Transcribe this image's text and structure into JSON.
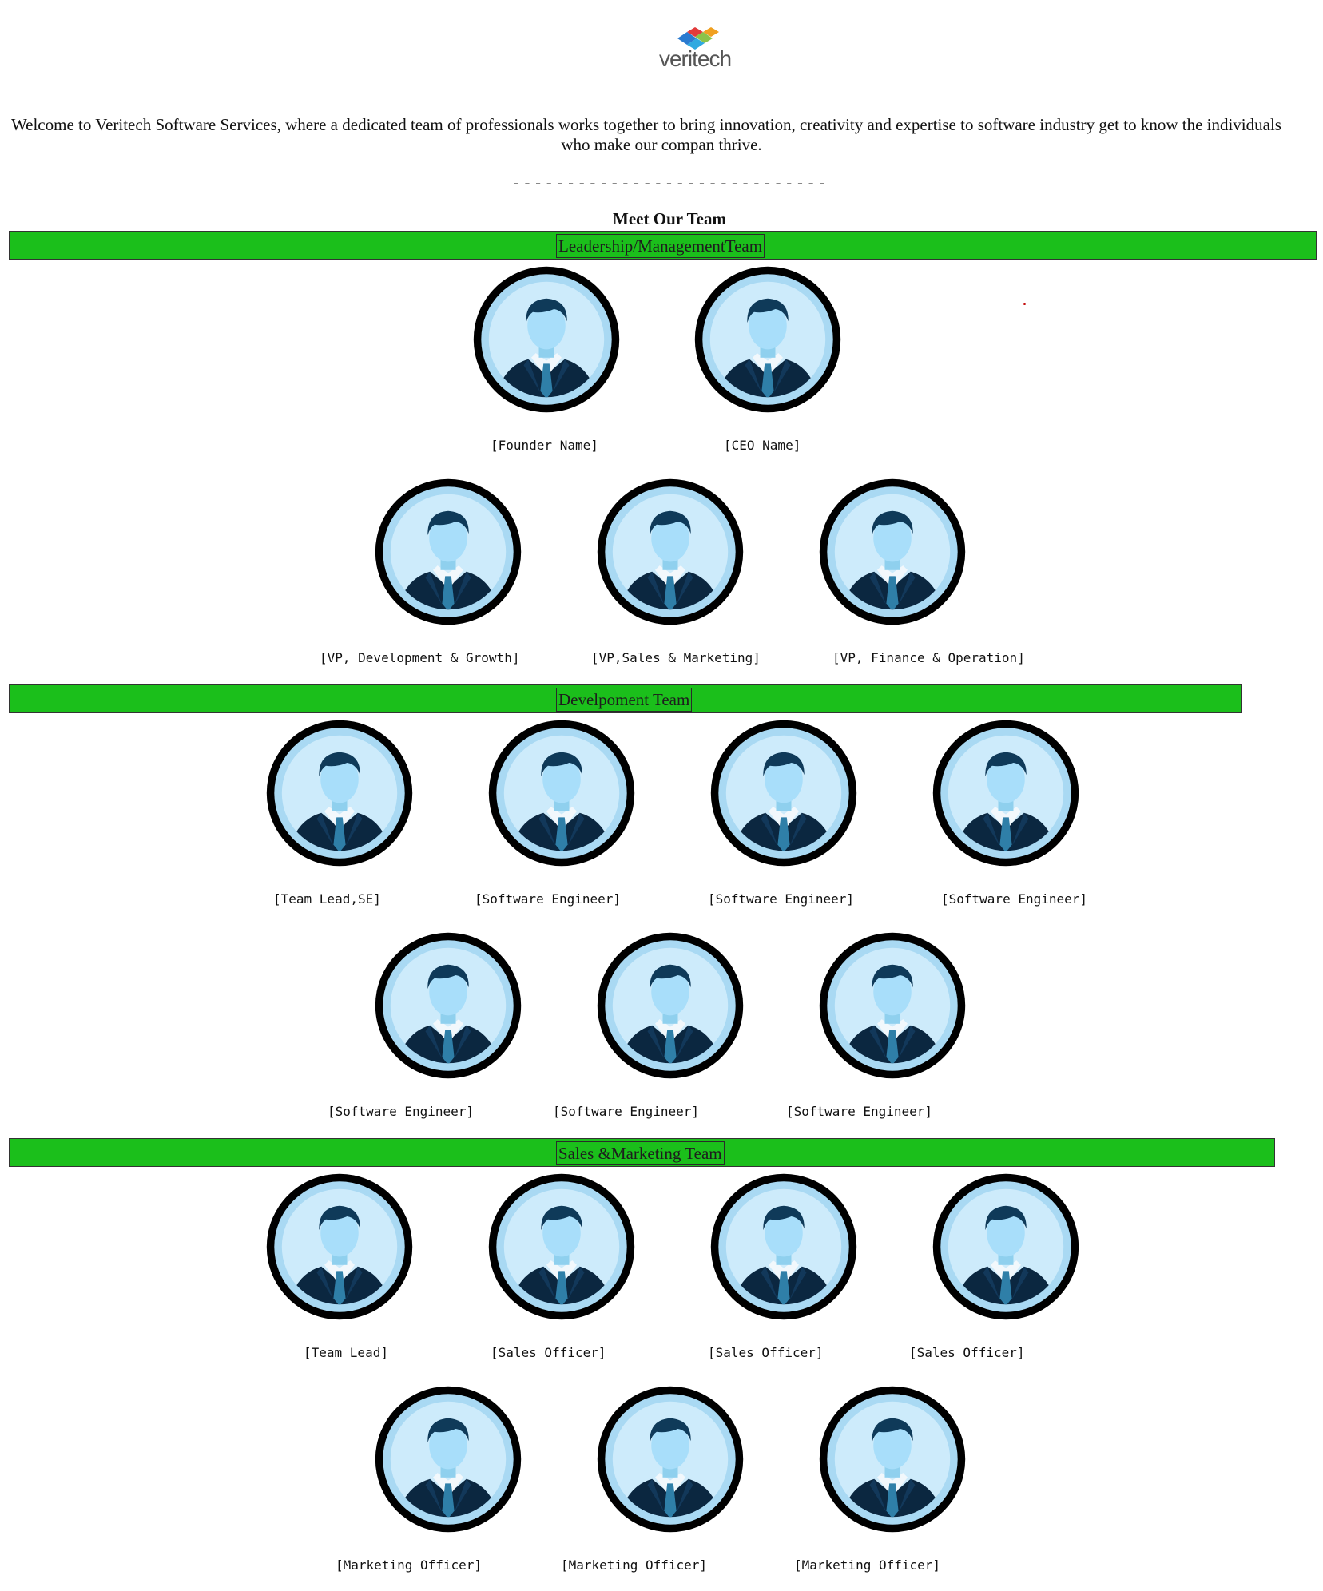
{
  "logo": {
    "text": "veritech"
  },
  "intro": {
    "line1": "Welcome to Veritech Software Services, where a dedicated team of professionals works together to bring innovation, creativity and expertise to software industry get to know the individuals",
    "line2": "who make our compan thrive."
  },
  "divider": "- - - - - - - - - - - - - - - - - - - - - - - - - - - - -",
  "heading": "Meet Our Team",
  "sections": [
    {
      "title": "Leadership/ManagementTeam",
      "members": [
        "[Founder Name]",
        "[CEO Name]",
        "[VP, Development & Growth]",
        "[VP,Sales & Marketing]",
        "[VP, Finance & Operation]"
      ]
    },
    {
      "title": "Develpoment Team",
      "members": [
        "[Team Lead,SE]",
        "[Software Engineer]",
        "[Software Engineer]",
        "[Software Engineer]",
        "[Software Engineer]",
        "[Software Engineer]",
        "[Software Engineer]"
      ]
    },
    {
      "title": "Sales &Marketing Team",
      "members": [
        "[Team Lead]",
        "[Sales Officer]",
        "[Sales Officer]",
        "[Sales Officer]",
        "[Marketing Officer]",
        "[Marketing Officer]",
        "[Marketing Officer]"
      ]
    }
  ],
  "colors": {
    "band": "#1bbf1b",
    "avatar_bg": "#bfe6fa",
    "avatar_ring": "#111111"
  },
  "icons": {
    "avatar": "businessman-avatar-icon",
    "logo": "veritech-logo-icon"
  }
}
